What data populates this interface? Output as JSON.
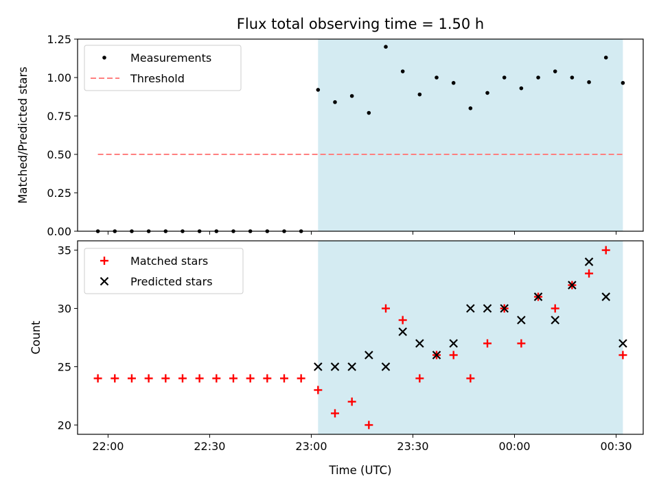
{
  "title": "Flux total observing time = 1.50 h",
  "colors": {
    "shade": "#add8e6",
    "measurement": "#000000",
    "threshold": "#ff7f7f",
    "matched": "#ff0000",
    "predicted": "#000000"
  },
  "chart_data": [
    {
      "type": "scatter",
      "ylabel": "Matched/Predicted stars",
      "ylim": [
        0,
        1.25
      ],
      "yticks": [
        0,
        0.25,
        0.5,
        0.75,
        1.0,
        1.25
      ],
      "ytick_labels": [
        "0.00",
        "0.25",
        "0.50",
        "0.75",
        "1.00",
        "1.25"
      ],
      "grid": false,
      "legend_position": "upper-left",
      "shaded_interval": {
        "start": "23:02",
        "end": "00:32"
      },
      "threshold": {
        "name": "Threshold",
        "y": 0.5,
        "x_start": "21:57",
        "x_end": "00:32",
        "style": "dashed"
      },
      "series": [
        {
          "name": "Measurements",
          "marker": "dot",
          "x": [
            "21:57",
            "22:02",
            "22:07",
            "22:12",
            "22:17",
            "22:22",
            "22:27",
            "22:32",
            "22:37",
            "22:42",
            "22:47",
            "22:52",
            "22:57",
            "23:02",
            "23:07",
            "23:12",
            "23:17",
            "23:22",
            "23:27",
            "23:32",
            "23:37",
            "23:42",
            "23:47",
            "23:52",
            "23:57",
            "00:02",
            "00:07",
            "00:12",
            "00:17",
            "00:22",
            "00:27",
            "00:32"
          ],
          "y": [
            0,
            0,
            0,
            0,
            0,
            0,
            0,
            0,
            0,
            0,
            0,
            0,
            0,
            0.92,
            0.84,
            0.88,
            0.77,
            1.2,
            1.04,
            0.89,
            1.0,
            0.965,
            0.8,
            0.9,
            1.0,
            0.93,
            1.0,
            1.04,
            1.0,
            0.97,
            1.13,
            0.965
          ]
        }
      ]
    },
    {
      "type": "scatter",
      "xlabel": "Time (UTC)",
      "ylabel": "Count",
      "ylim": [
        19.2,
        35.8
      ],
      "yticks": [
        20,
        25,
        30,
        35
      ],
      "xticks": [
        "22:00",
        "22:30",
        "23:00",
        "23:30",
        "00:00",
        "00:30"
      ],
      "grid": false,
      "legend_position": "upper-left",
      "shaded_interval": {
        "start": "23:02",
        "end": "00:32"
      },
      "series": [
        {
          "name": "Matched stars",
          "marker": "plus",
          "x": [
            "21:57",
            "22:02",
            "22:07",
            "22:12",
            "22:17",
            "22:22",
            "22:27",
            "22:32",
            "22:37",
            "22:42",
            "22:47",
            "22:52",
            "22:57",
            "23:02",
            "23:07",
            "23:12",
            "23:17",
            "23:22",
            "23:27",
            "23:32",
            "23:37",
            "23:42",
            "23:47",
            "23:52",
            "23:57",
            "00:02",
            "00:07",
            "00:12",
            "00:17",
            "00:22",
            "00:27",
            "00:32"
          ],
          "y": [
            24,
            24,
            24,
            24,
            24,
            24,
            24,
            24,
            24,
            24,
            24,
            24,
            24,
            23,
            21,
            22,
            20,
            30,
            29,
            24,
            26,
            26,
            24,
            27,
            30,
            27,
            31,
            30,
            32,
            33,
            35,
            26
          ]
        },
        {
          "name": "Predicted stars",
          "marker": "x",
          "x": [
            "23:02",
            "23:07",
            "23:12",
            "23:17",
            "23:22",
            "23:27",
            "23:32",
            "23:37",
            "23:42",
            "23:47",
            "23:52",
            "23:57",
            "00:02",
            "00:07",
            "00:12",
            "00:17",
            "00:22",
            "00:27",
            "00:32"
          ],
          "y": [
            25,
            25,
            25,
            26,
            25,
            28,
            27,
            26,
            27,
            30,
            30,
            30,
            29,
            31,
            29,
            32,
            34,
            31,
            27
          ]
        }
      ]
    }
  ]
}
